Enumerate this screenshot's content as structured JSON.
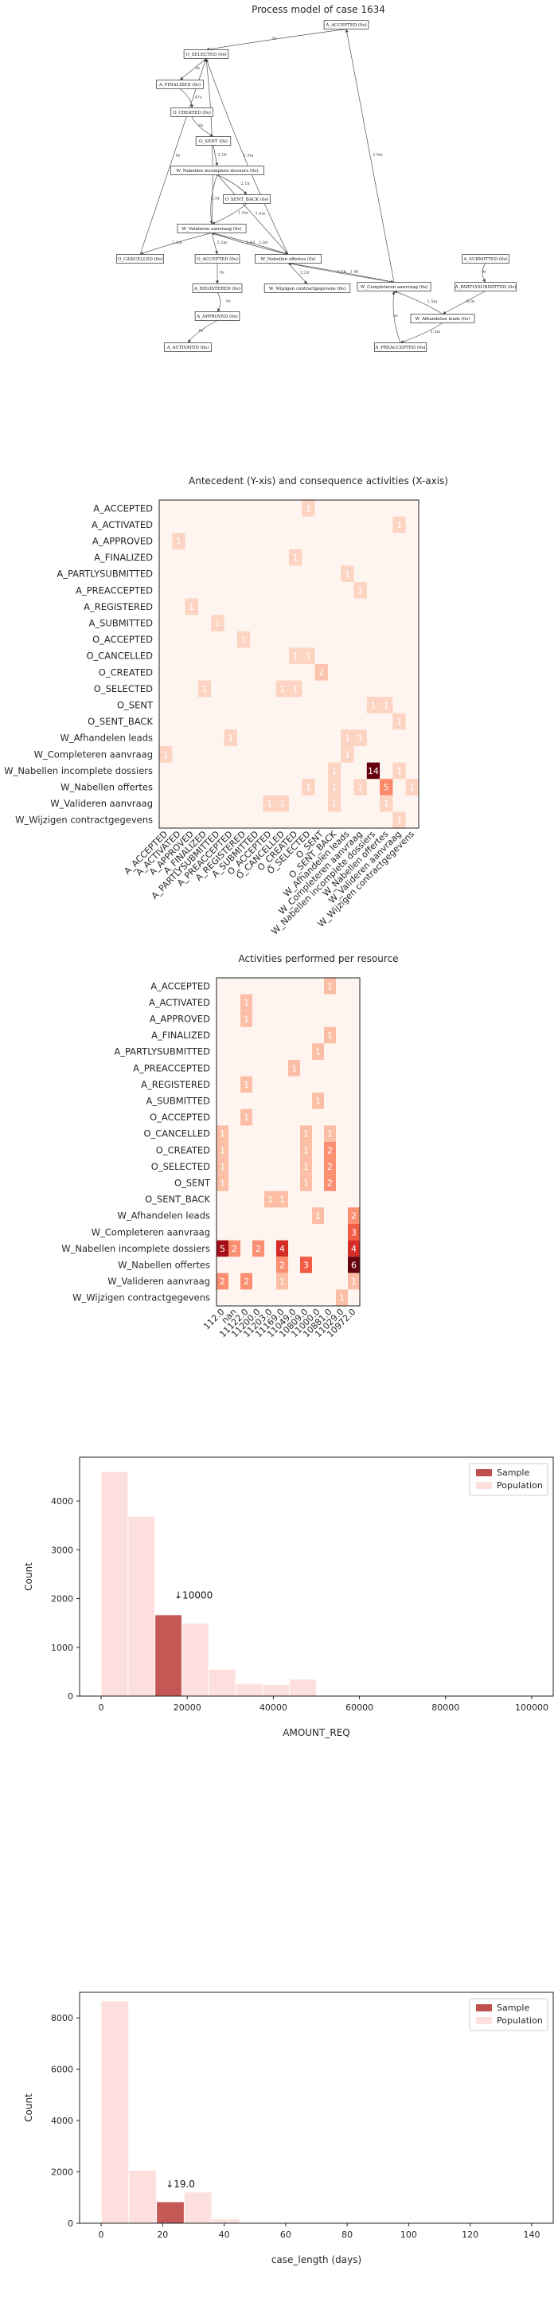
{
  "process_model": {
    "title": "Process model of case 1634",
    "nodes": [
      {
        "id": "A_ACCEPTED",
        "label": "A_ACCEPTED (0s)"
      },
      {
        "id": "O_SELECTED",
        "label": "O_SELECTED (0s)"
      },
      {
        "id": "A_FINALIZED",
        "label": "A_FINALIZED (0s)"
      },
      {
        "id": "O_CREATED",
        "label": "O_CREATED (0s)"
      },
      {
        "id": "O_SENT",
        "label": "O_SENT (0s)"
      },
      {
        "id": "W_NID",
        "label": "W_Nabellen incomplete dossiers (0s)"
      },
      {
        "id": "O_SENT_BACK",
        "label": "O_SENT_BACK (0s)"
      },
      {
        "id": "W_VA",
        "label": "W_Valideren aanvraag (0s)"
      },
      {
        "id": "O_CANCELLED",
        "label": "O_CANCELLED (0s)"
      },
      {
        "id": "O_ACCEPTED",
        "label": "O_ACCEPTED (0s)"
      },
      {
        "id": "W_NO",
        "label": "W_Nabellen offertes (0s)"
      },
      {
        "id": "W_CA",
        "label": "W_Completeren aanvraag (0s)"
      },
      {
        "id": "A_SUBMITTED",
        "label": "A_SUBMITTED (0s)"
      },
      {
        "id": "A_REGISTERED",
        "label": "A_REGISTERED (0s)"
      },
      {
        "id": "W_WC",
        "label": "W_Wijzigen contractgegevens (0s)"
      },
      {
        "id": "A_PARTLY",
        "label": "A_PARTLYSUBMITTED (0s)"
      },
      {
        "id": "A_APPROVED",
        "label": "A_APPROVED (0s)"
      },
      {
        "id": "W_AL",
        "label": "W_Afhandelen leads (0s)"
      },
      {
        "id": "A_ACTIVATED",
        "label": "A_ACTIVATED (0s)"
      },
      {
        "id": "A_PREACCEPTED",
        "label": "A_PREACCEPTED (0s)"
      }
    ],
    "edges": [
      {
        "from": "A_ACCEPTED",
        "to": "O_SELECTED",
        "label": "0s"
      },
      {
        "from": "O_SELECTED",
        "to": "A_FINALIZED",
        "label": "0s"
      },
      {
        "from": "A_FINALIZED",
        "to": "O_CREATED",
        "label": "47s"
      },
      {
        "from": "O_CREATED",
        "to": "O_SENT",
        "label": "0s"
      },
      {
        "from": "O_SENT",
        "to": "W_NID",
        "label": "2.1h"
      },
      {
        "from": "W_NID",
        "to": "O_SENT_BACK",
        "label": "2.1h"
      },
      {
        "from": "W_NID",
        "to": "W_VA",
        "label": "1.3d"
      },
      {
        "from": "W_NID",
        "to": "W_NO",
        "label": "1.5m"
      },
      {
        "from": "O_SENT_BACK",
        "to": "W_VA",
        "label": "1.5m"
      },
      {
        "from": "W_VA",
        "to": "O_CANCELLED",
        "label": "2.1m"
      },
      {
        "from": "W_VA",
        "to": "O_ACCEPTED",
        "label": "2.2m"
      },
      {
        "from": "W_VA",
        "to": "W_NO",
        "label": "2.0d"
      },
      {
        "from": "W_NO",
        "to": "W_VA",
        "label": "1.4d"
      },
      {
        "from": "W_NO",
        "to": "W_WC",
        "label": "2.2d"
      },
      {
        "from": "W_NO",
        "to": "W_CA",
        "label": "1.4h"
      },
      {
        "from": "W_CA",
        "to": "W_NO",
        "label": "2.2h"
      },
      {
        "from": "W_CA",
        "to": "A_ACCEPTED",
        "label": "2.5m"
      },
      {
        "from": "W_AL",
        "to": "W_CA",
        "label": "1.5m"
      },
      {
        "from": "A_SUBMITTED",
        "to": "A_PARTLY",
        "label": "0s"
      },
      {
        "from": "A_PARTLY",
        "to": "W_AL",
        "label": "8.0s"
      },
      {
        "from": "W_AL",
        "to": "A_PREACCEPTED",
        "label": "1.5m"
      },
      {
        "from": "A_PREACCEPTED",
        "to": "W_CA",
        "label": "0s"
      },
      {
        "from": "O_ACCEPTED",
        "to": "A_REGISTERED",
        "label": "0s"
      },
      {
        "from": "A_REGISTERED",
        "to": "A_APPROVED",
        "label": "0s"
      },
      {
        "from": "A_APPROVED",
        "to": "A_ACTIVATED",
        "label": "0s"
      },
      {
        "from": "O_CANCELLED",
        "to": "O_SELECTED",
        "label": "0s"
      },
      {
        "from": "W_VA",
        "to": "O_SELECTED",
        "label": "2.3m"
      },
      {
        "from": "W_NO",
        "to": "O_SELECTED",
        "label": "2.3m"
      }
    ]
  },
  "chart_data": [
    {
      "type": "heatmap",
      "title": "Antecedent (Y-xis) and consequence activities (X-axis)",
      "xlabel": "",
      "ylabel": "",
      "rows": [
        "A_ACCEPTED",
        "A_ACTIVATED",
        "A_APPROVED",
        "A_FINALIZED",
        "A_PARTLYSUBMITTED",
        "A_PREACCEPTED",
        "A_REGISTERED",
        "A_SUBMITTED",
        "O_ACCEPTED",
        "O_CANCELLED",
        "O_CREATED",
        "O_SELECTED",
        "O_SENT",
        "O_SENT_BACK",
        "W_Afhandelen leads",
        "W_Completeren aanvraag",
        "W_Nabellen incomplete dossiers",
        "W_Nabellen offertes",
        "W_Valideren aanvraag",
        "W_Wijzigen contractgegevens"
      ],
      "columns": [
        "A_ACCEPTED",
        "A_ACTIVATED",
        "A_APPROVED",
        "A_FINALIZED",
        "A_PARTLYSUBMITTED",
        "A_PREACCEPTED",
        "A_REGISTERED",
        "A_SUBMITTED",
        "O_ACCEPTED",
        "O_CANCELLED",
        "O_CREATED",
        "O_SELECTED",
        "O_SENT",
        "O_SENT_BACK",
        "W_Afhandelen leads",
        "W_Completeren aanvraag",
        "W_Nabellen incomplete dossiers",
        "W_Nabellen offertes",
        "W_Valideren aanvraag",
        "W_Wijzigen contractgegevens"
      ],
      "cells": [
        {
          "r": 0,
          "c": 11,
          "v": 1
        },
        {
          "r": 1,
          "c": 18,
          "v": 1
        },
        {
          "r": 2,
          "c": 1,
          "v": 1
        },
        {
          "r": 3,
          "c": 10,
          "v": 1
        },
        {
          "r": 4,
          "c": 14,
          "v": 1
        },
        {
          "r": 5,
          "c": 15,
          "v": 1
        },
        {
          "r": 6,
          "c": 2,
          "v": 1
        },
        {
          "r": 7,
          "c": 4,
          "v": 1
        },
        {
          "r": 8,
          "c": 6,
          "v": 1
        },
        {
          "r": 9,
          "c": 10,
          "v": 1
        },
        {
          "r": 9,
          "c": 11,
          "v": 1
        },
        {
          "r": 10,
          "c": 12,
          "v": 2
        },
        {
          "r": 11,
          "c": 3,
          "v": 1
        },
        {
          "r": 11,
          "c": 9,
          "v": 1
        },
        {
          "r": 11,
          "c": 10,
          "v": 1
        },
        {
          "r": 12,
          "c": 17,
          "v": 1
        },
        {
          "r": 12,
          "c": 16,
          "v": 1
        },
        {
          "r": 13,
          "c": 18,
          "v": 1
        },
        {
          "r": 14,
          "c": 5,
          "v": 1
        },
        {
          "r": 14,
          "c": 14,
          "v": 1
        },
        {
          "r": 14,
          "c": 15,
          "v": 1
        },
        {
          "r": 15,
          "c": 0,
          "v": 1
        },
        {
          "r": 15,
          "c": 14,
          "v": 1
        },
        {
          "r": 16,
          "c": 13,
          "v": 1
        },
        {
          "r": 16,
          "c": 16,
          "v": 14
        },
        {
          "r": 16,
          "c": 18,
          "v": 1
        },
        {
          "r": 17,
          "c": 11,
          "v": 1
        },
        {
          "r": 17,
          "c": 13,
          "v": 1
        },
        {
          "r": 17,
          "c": 15,
          "v": 1
        },
        {
          "r": 17,
          "c": 17,
          "v": 5
        },
        {
          "r": 17,
          "c": 19,
          "v": 1
        },
        {
          "r": 18,
          "c": 8,
          "v": 1
        },
        {
          "r": 18,
          "c": 9,
          "v": 1
        },
        {
          "r": 18,
          "c": 13,
          "v": 1
        },
        {
          "r": 18,
          "c": 17,
          "v": 1
        },
        {
          "r": 19,
          "c": 18,
          "v": 1
        }
      ],
      "labels": {
        "0,11": "1",
        "1,18": "1",
        "2,1": "1",
        "3,10": "1",
        "4,14": "1",
        "5,15": "1",
        "6,2": "1",
        "7,4": "1",
        "8,6": "1",
        "9,10": "1",
        "9,11": "1",
        "10,12": "2",
        "11,3": "1",
        "11,9": "1",
        "11,10": "1",
        "12,17": "1",
        "13,18": "1",
        "14,5": "1",
        "14,14": "1",
        "14,15": "1",
        "16,16": "14",
        "17,11": "1",
        "17,13": "1",
        "17,17": "5",
        "18,8": "1",
        "18,9": "1",
        "18,17": "1"
      }
    },
    {
      "type": "heatmap",
      "title": "Activities performed per resource",
      "rows": [
        "A_ACCEPTED",
        "A_ACTIVATED",
        "A_APPROVED",
        "A_FINALIZED",
        "A_PARTLYSUBMITTED",
        "A_PREACCEPTED",
        "A_REGISTERED",
        "A_SUBMITTED",
        "O_ACCEPTED",
        "O_CANCELLED",
        "O_CREATED",
        "O_SELECTED",
        "O_SENT",
        "O_SENT_BACK",
        "W_Afhandelen leads",
        "W_Completeren aanvraag",
        "W_Nabellen incomplete dossiers",
        "W_Nabellen offertes",
        "W_Valideren aanvraag",
        "W_Wijzigen contractgegevens"
      ],
      "columns": [
        "112.0",
        "nan",
        "11122.0",
        "11200.0",
        "11203.0",
        "11169.0",
        "11049.0",
        "10809.0",
        "11000.0",
        "10881.0",
        "11029.0",
        "10972.0"
      ],
      "cells": [
        {
          "r": 0,
          "c": 9,
          "v": 1
        },
        {
          "r": 1,
          "c": 2,
          "v": 1
        },
        {
          "r": 2,
          "c": 2,
          "v": 1
        },
        {
          "r": 3,
          "c": 9,
          "v": 1
        },
        {
          "r": 4,
          "c": 8,
          "v": 1
        },
        {
          "r": 5,
          "c": 6,
          "v": 1
        },
        {
          "r": 6,
          "c": 2,
          "v": 1
        },
        {
          "r": 7,
          "c": 8,
          "v": 1
        },
        {
          "r": 8,
          "c": 2,
          "v": 1
        },
        {
          "r": 9,
          "c": 0,
          "v": 1
        },
        {
          "r": 9,
          "c": 7,
          "v": 1
        },
        {
          "r": 9,
          "c": 9,
          "v": 1
        },
        {
          "r": 10,
          "c": 0,
          "v": 1
        },
        {
          "r": 10,
          "c": 7,
          "v": 1
        },
        {
          "r": 10,
          "c": 9,
          "v": 2
        },
        {
          "r": 11,
          "c": 0,
          "v": 1
        },
        {
          "r": 11,
          "c": 7,
          "v": 1
        },
        {
          "r": 11,
          "c": 9,
          "v": 2
        },
        {
          "r": 12,
          "c": 0,
          "v": 1
        },
        {
          "r": 12,
          "c": 7,
          "v": 1
        },
        {
          "r": 12,
          "c": 9,
          "v": 2
        },
        {
          "r": 13,
          "c": 4,
          "v": 1
        },
        {
          "r": 13,
          "c": 5,
          "v": 1
        },
        {
          "r": 14,
          "c": 8,
          "v": 1
        },
        {
          "r": 14,
          "c": 11,
          "v": 2
        },
        {
          "r": 15,
          "c": 11,
          "v": 3
        },
        {
          "r": 16,
          "c": 0,
          "v": 5
        },
        {
          "r": 16,
          "c": 1,
          "v": 2
        },
        {
          "r": 16,
          "c": 3,
          "v": 2
        },
        {
          "r": 16,
          "c": 5,
          "v": 4
        },
        {
          "r": 16,
          "c": 11,
          "v": 4
        },
        {
          "r": 17,
          "c": 5,
          "v": 2
        },
        {
          "r": 17,
          "c": 7,
          "v": 3
        },
        {
          "r": 17,
          "c": 11,
          "v": 6
        },
        {
          "r": 18,
          "c": 0,
          "v": 2
        },
        {
          "r": 18,
          "c": 2,
          "v": 2
        },
        {
          "r": 18,
          "c": 5,
          "v": 1
        },
        {
          "r": 18,
          "c": 11,
          "v": 1
        },
        {
          "r": 19,
          "c": 10,
          "v": 1
        }
      ]
    },
    {
      "type": "bar",
      "xlabel": "AMOUNT_REQ",
      "ylabel": "Count",
      "xlim": [
        -5000,
        105000
      ],
      "ylim": [
        0,
        4900
      ],
      "xticks": [
        "0",
        "20000",
        "40000",
        "60000",
        "80000",
        "100000"
      ],
      "xtick_values": [
        0,
        20000,
        40000,
        60000,
        80000,
        100000
      ],
      "yticks": [
        "0",
        "1000",
        "2000",
        "3000",
        "4000"
      ],
      "ytick_values": [
        0,
        1000,
        2000,
        3000,
        4000
      ],
      "bin_edges": [
        0,
        6250,
        12500,
        18750,
        25000,
        31250,
        37500,
        43750,
        50000,
        56250
      ],
      "series": [
        {
          "name": "Sample",
          "color": "#c0504d",
          "values": [
            0,
            0,
            1660,
            0,
            0,
            0,
            0,
            0,
            0
          ]
        },
        {
          "name": "Population",
          "color": "#fde0dd",
          "values": [
            4600,
            3680,
            1650,
            1490,
            540,
            250,
            230,
            340,
            0
          ]
        }
      ],
      "annotation": {
        "text": "↓10000",
        "x": 17000,
        "y": 2000
      }
    },
    {
      "type": "bar",
      "xlabel": "case_length (days)",
      "ylabel": "Count",
      "xlim": [
        -7,
        147
      ],
      "ylim": [
        0,
        9000
      ],
      "xticks": [
        "0",
        "20",
        "40",
        "60",
        "80",
        "100",
        "120",
        "140"
      ],
      "xtick_values": [
        0,
        20,
        40,
        60,
        80,
        100,
        120,
        140
      ],
      "yticks": [
        "0",
        "2000",
        "4000",
        "6000",
        "8000"
      ],
      "ytick_values": [
        0,
        2000,
        4000,
        6000,
        8000
      ],
      "bin_edges": [
        0,
        9,
        18,
        27,
        36,
        45
      ],
      "series": [
        {
          "name": "Sample",
          "color": "#c0504d",
          "values": [
            0,
            0,
            820,
            0,
            0
          ]
        },
        {
          "name": "Population",
          "color": "#fde0dd",
          "values": [
            8650,
            2050,
            800,
            1200,
            150
          ]
        }
      ],
      "annotation": {
        "text": "↓19.0",
        "x": 21,
        "y": 1400
      }
    }
  ]
}
